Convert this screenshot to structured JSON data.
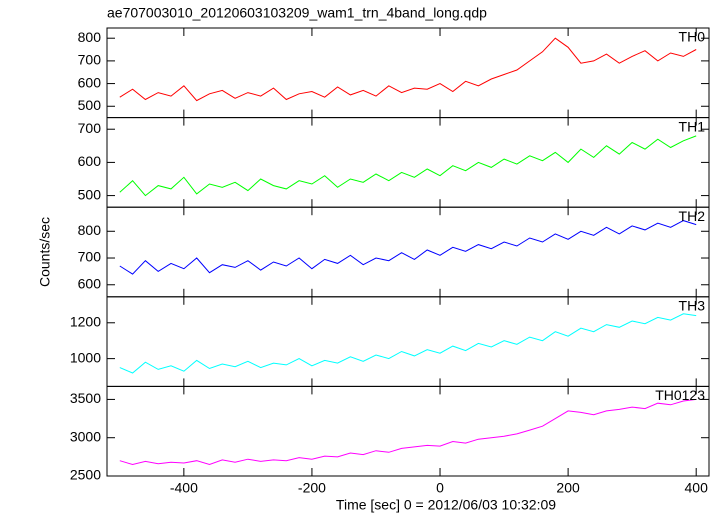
{
  "chart_data": {
    "type": "line",
    "title": "ae707003010_20120603103209_wam1_trn_4band_long.qdp",
    "xlabel": "Time [sec] 0 = 2012/06/03 10:32:09",
    "ylabel": "Counts/sec",
    "xlim": [
      -520,
      420
    ],
    "xticks": [
      -400,
      -200,
      0,
      200,
      400
    ],
    "x": [
      -500,
      -480,
      -460,
      -440,
      -420,
      -400,
      -380,
      -360,
      -340,
      -320,
      -300,
      -280,
      -260,
      -240,
      -220,
      -200,
      -180,
      -160,
      -140,
      -120,
      -100,
      -80,
      -60,
      -40,
      -20,
      0,
      20,
      40,
      60,
      80,
      100,
      120,
      140,
      160,
      180,
      200,
      220,
      240,
      260,
      280,
      300,
      320,
      340,
      360,
      380,
      400
    ],
    "series": [
      {
        "name": "TH0",
        "color": "#ff0000",
        "ylim": [
          450,
          845
        ],
        "yticks": [
          500,
          600,
          700,
          800
        ],
        "values": [
          540,
          575,
          530,
          560,
          545,
          590,
          525,
          555,
          570,
          535,
          560,
          545,
          580,
          530,
          555,
          565,
          540,
          585,
          550,
          570,
          545,
          590,
          560,
          580,
          575,
          600,
          565,
          610,
          590,
          620,
          640,
          660,
          700,
          740,
          800,
          760,
          690,
          700,
          730,
          690,
          720,
          745,
          700,
          735,
          720,
          750
        ]
      },
      {
        "name": "TH1",
        "color": "#00ff00",
        "ylim": [
          465,
          735
        ],
        "yticks": [
          500,
          600,
          700
        ],
        "values": [
          510,
          545,
          500,
          530,
          520,
          555,
          505,
          535,
          525,
          540,
          515,
          550,
          530,
          520,
          545,
          535,
          560,
          525,
          550,
          540,
          565,
          545,
          570,
          555,
          580,
          560,
          590,
          575,
          600,
          585,
          610,
          595,
          620,
          605,
          630,
          600,
          640,
          615,
          650,
          625,
          660,
          640,
          670,
          645,
          665,
          680
        ]
      },
      {
        "name": "TH2",
        "color": "#0000ff",
        "ylim": [
          555,
          890
        ],
        "yticks": [
          600,
          700,
          800
        ],
        "values": [
          670,
          640,
          690,
          650,
          680,
          660,
          700,
          645,
          675,
          665,
          690,
          655,
          685,
          670,
          700,
          660,
          695,
          680,
          710,
          675,
          700,
          690,
          720,
          695,
          730,
          710,
          740,
          725,
          750,
          735,
          760,
          745,
          775,
          760,
          790,
          770,
          800,
          785,
          815,
          790,
          820,
          805,
          830,
          815,
          840,
          825
        ]
      },
      {
        "name": "TH3",
        "color": "#00ffff",
        "ylim": [
          845,
          1345
        ],
        "yticks": [
          1000,
          1200
        ],
        "values": [
          950,
          920,
          980,
          940,
          960,
          930,
          990,
          945,
          970,
          955,
          985,
          950,
          975,
          965,
          1000,
          960,
          990,
          975,
          1010,
          985,
          1020,
          1000,
          1040,
          1015,
          1050,
          1030,
          1070,
          1045,
          1085,
          1065,
          1100,
          1080,
          1120,
          1100,
          1150,
          1125,
          1170,
          1150,
          1190,
          1175,
          1210,
          1195,
          1230,
          1215,
          1250,
          1240
        ]
      },
      {
        "name": "TH0123",
        "color": "#ff00ff",
        "ylim": [
          2500,
          3670
        ],
        "yticks": [
          2500,
          3000,
          3500
        ],
        "values": [
          2700,
          2650,
          2690,
          2660,
          2680,
          2670,
          2700,
          2650,
          2710,
          2680,
          2720,
          2690,
          2710,
          2700,
          2740,
          2720,
          2760,
          2750,
          2800,
          2780,
          2830,
          2810,
          2860,
          2880,
          2900,
          2890,
          2950,
          2930,
          2980,
          3000,
          3020,
          3050,
          3100,
          3150,
          3250,
          3350,
          3330,
          3300,
          3350,
          3370,
          3400,
          3380,
          3450,
          3430,
          3480,
          3500
        ]
      }
    ]
  }
}
